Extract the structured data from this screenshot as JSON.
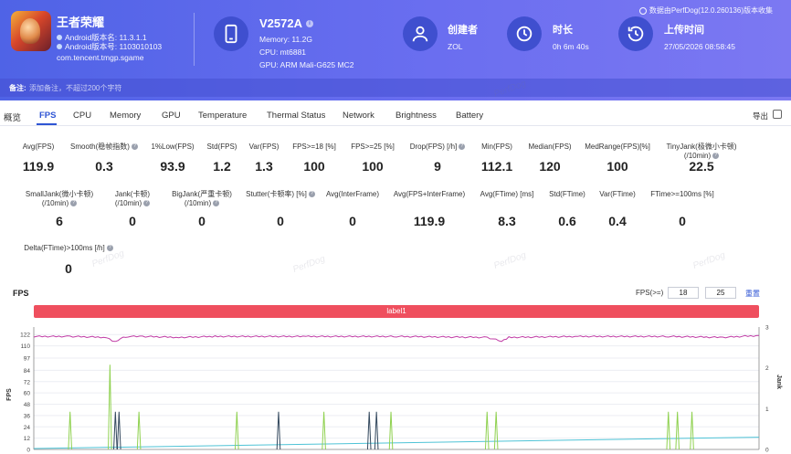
{
  "header": {
    "app_name": "王者荣耀",
    "android_version": "Android版本名: 11.3.1.1",
    "android_code": "Android版本号: 1103010103",
    "package": "com.tencent.tmgp.sgame",
    "device_name": "V2572A",
    "memory": "Memory: 11.2G",
    "cpu": "CPU: mt6881",
    "gpu": "GPU: ARM Mali-G625 MC2",
    "creator_title": "创建者",
    "creator_value": "ZOL",
    "duration_title": "时长",
    "duration_value": "0h 6m 40s",
    "upload_title": "上传时间",
    "upload_value": "27/05/2026 08:58:45",
    "version_note": "数据由PerfDog(12.0.260136)版本收集",
    "note_label": "备注:",
    "note_placeholder": "添加备注，不超过200个字符"
  },
  "tabs": [
    "概览",
    "FPS",
    "CPU",
    "Memory",
    "GPU",
    "Temperature",
    "Thermal Status",
    "Network",
    "Brightness",
    "Battery"
  ],
  "active_tab": "FPS",
  "export_label": "导出",
  "stats_row1": [
    {
      "label": "Avg(FPS)",
      "value": "119.9"
    },
    {
      "label": "Smooth(稳帧指数)",
      "value": "0.3"
    },
    {
      "label": "1%Low(FPS)",
      "value": "93.9"
    },
    {
      "label": "Std(FPS)",
      "value": "1.2"
    },
    {
      "label": "Var(FPS)",
      "value": "1.3"
    },
    {
      "label": "FPS>=18 [%]",
      "value": "100"
    },
    {
      "label": "FPS>=25 [%]",
      "value": "100"
    },
    {
      "label": "Drop(FPS) [/h]",
      "value": "9"
    },
    {
      "label": "Min(FPS)",
      "value": "112.1"
    },
    {
      "label": "Median(FPS)",
      "value": "120"
    },
    {
      "label": "MedRange(FPS)[%]",
      "value": "100"
    },
    {
      "label": "TinyJank(极微小卡顿)",
      "label2": "(/10min)",
      "value": "22.5"
    }
  ],
  "stats_row2": [
    {
      "label": "SmallJank(微小卡顿)",
      "label2": "(/10min)",
      "value": "6"
    },
    {
      "label": "Jank(卡顿)",
      "label2": "(/10min)",
      "value": "0"
    },
    {
      "label": "BigJank(严重卡顿)",
      "label2": "(/10min)",
      "value": "0"
    },
    {
      "label": "Stutter(卡顿率) [%]",
      "value": "0"
    },
    {
      "label": "Avg(InterFrame)",
      "value": "0"
    },
    {
      "label": "Avg(FPS+InterFrame)",
      "value": "119.9"
    },
    {
      "label": "Avg(FTime) [ms]",
      "value": "8.3"
    },
    {
      "label": "Std(FTime)",
      "value": "0.6"
    },
    {
      "label": "Var(FTime)",
      "value": "0.4"
    },
    {
      "label": "FTime>=100ms [%]",
      "value": "0"
    }
  ],
  "stats_row3": [
    {
      "label": "Delta(FTime)>100ms [/h]",
      "value": "0"
    }
  ],
  "watermark": "PerfDog",
  "fps_control": {
    "label": "FPS(>=)",
    "value1": "18",
    "value2": "25",
    "reset": "重置"
  },
  "chart_data": {
    "type": "line",
    "title": "FPS",
    "band_label": "label1",
    "ylabel": "FPS",
    "y2label": "Jank",
    "yticks": [
      0,
      12,
      24,
      36,
      48,
      60,
      72,
      84,
      97,
      110,
      122
    ],
    "y2ticks": [
      0,
      1,
      2,
      3
    ],
    "ylim": [
      0,
      130
    ],
    "y2lim": [
      0,
      3
    ],
    "xlim": [
      0,
      400
    ],
    "colors": {
      "fps": "#c03ba5",
      "jank_green": "#8fd14f",
      "jank_blue": "#34495e",
      "trend": "#4ec3d6",
      "label_band": "#ef4f5e"
    },
    "series": [
      {
        "name": "FPS",
        "x": [
          0,
          20,
          40,
          45,
          48,
          52,
          60,
          80,
          100,
          150,
          200,
          250,
          258,
          262,
          300,
          350,
          380,
          400
        ],
        "y": [
          120,
          120,
          119,
          114,
          118,
          120,
          120,
          119,
          120,
          120,
          120,
          119,
          115,
          119,
          120,
          120,
          119,
          121
        ]
      },
      {
        "name": "Jank(green)",
        "spikes": [
          [
            20,
            40
          ],
          [
            42,
            90
          ],
          [
            58,
            40
          ],
          [
            112,
            40
          ],
          [
            160,
            40
          ],
          [
            197,
            40
          ],
          [
            250,
            40
          ],
          [
            255,
            40
          ],
          [
            350,
            40
          ],
          [
            355,
            40
          ],
          [
            363,
            40
          ]
        ]
      },
      {
        "name": "Jank(blue)",
        "spikes": [
          [
            45,
            40
          ],
          [
            47,
            40
          ],
          [
            135,
            40
          ],
          [
            185,
            40
          ],
          [
            189,
            40
          ]
        ]
      },
      {
        "name": "trend",
        "x": [
          0,
          400
        ],
        "y": [
          1,
          13
        ]
      }
    ]
  }
}
